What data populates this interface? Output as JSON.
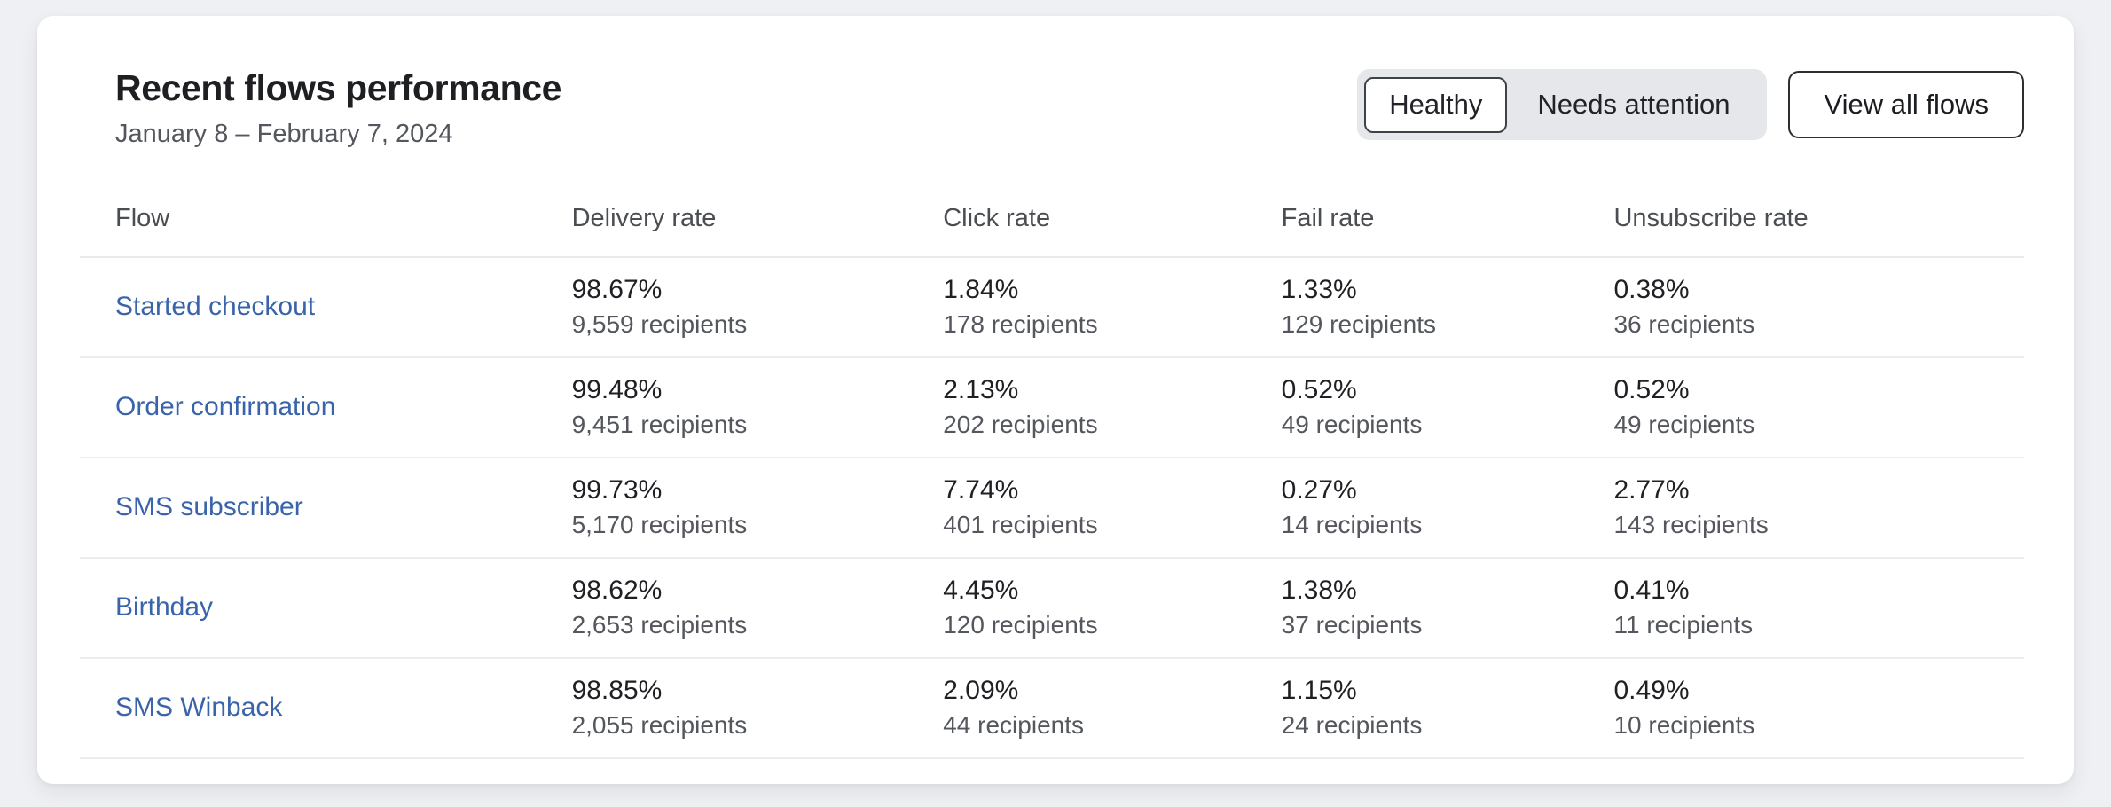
{
  "header": {
    "title": "Recent flows performance",
    "date_range": "January 8 – February 7, 2024",
    "toggle": {
      "options": [
        {
          "label": "Healthy",
          "selected": true
        },
        {
          "label": "Needs attention",
          "selected": false
        }
      ]
    },
    "view_all_label": "View all flows"
  },
  "table": {
    "columns": [
      "Flow",
      "Delivery rate",
      "Click rate",
      "Fail rate",
      "Unsubscribe rate"
    ],
    "rows": [
      {
        "flow": "Started checkout",
        "metrics": [
          {
            "value": "98.67%",
            "recipients": "9,559 recipients"
          },
          {
            "value": "1.84%",
            "recipients": "178 recipients"
          },
          {
            "value": "1.33%",
            "recipients": "129 recipients"
          },
          {
            "value": "0.38%",
            "recipients": "36 recipients"
          }
        ]
      },
      {
        "flow": "Order confirmation",
        "metrics": [
          {
            "value": "99.48%",
            "recipients": "9,451 recipients"
          },
          {
            "value": "2.13%",
            "recipients": "202 recipients"
          },
          {
            "value": "0.52%",
            "recipients": "49 recipients"
          },
          {
            "value": "0.52%",
            "recipients": "49 recipients"
          }
        ]
      },
      {
        "flow": "SMS subscriber",
        "metrics": [
          {
            "value": "99.73%",
            "recipients": "5,170 recipients"
          },
          {
            "value": "7.74%",
            "recipients": "401 recipients"
          },
          {
            "value": "0.27%",
            "recipients": "14 recipients"
          },
          {
            "value": "2.77%",
            "recipients": "143 recipients"
          }
        ]
      },
      {
        "flow": "Birthday",
        "metrics": [
          {
            "value": "98.62%",
            "recipients": "2,653 recipients"
          },
          {
            "value": "4.45%",
            "recipients": "120 recipients"
          },
          {
            "value": "1.38%",
            "recipients": "37 recipients"
          },
          {
            "value": "0.41%",
            "recipients": "11 recipients"
          }
        ]
      },
      {
        "flow": "SMS Winback",
        "metrics": [
          {
            "value": "98.85%",
            "recipients": "2,055 recipients"
          },
          {
            "value": "2.09%",
            "recipients": "44 recipients"
          },
          {
            "value": "1.15%",
            "recipients": "24 recipients"
          },
          {
            "value": "0.49%",
            "recipients": "10 recipients"
          }
        ]
      }
    ]
  },
  "colors": {
    "link": "#3a64aa",
    "toggle_selected_border": "#3e4146",
    "page_background": "#eff0f4",
    "card_background": "#ffffff"
  }
}
